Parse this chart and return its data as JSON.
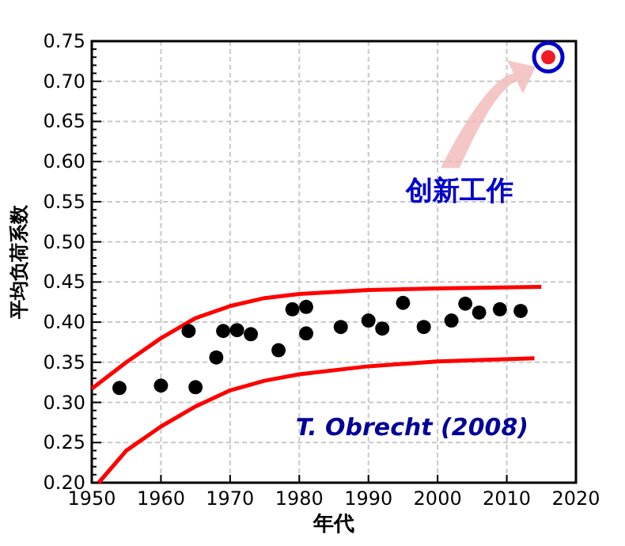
{
  "chart_data": {
    "type": "scatter",
    "xlabel": "年代",
    "ylabel": "平均负荷系数",
    "xlim": [
      1950,
      2020
    ],
    "ylim": [
      0.2,
      0.75
    ],
    "xticks": [
      1950,
      1960,
      1970,
      1980,
      1990,
      2000,
      2010,
      2020
    ],
    "yticks": [
      {
        "value": 0.2,
        "label": "0.20"
      },
      {
        "value": 0.25,
        "label": "0.25"
      },
      {
        "value": 0.3,
        "label": "0.30"
      },
      {
        "value": 0.35,
        "label": "0.35"
      },
      {
        "value": 0.4,
        "label": "0.40"
      },
      {
        "value": 0.45,
        "label": "0.45"
      },
      {
        "value": 0.5,
        "label": "0.50"
      },
      {
        "value": 0.55,
        "label": "0.55"
      },
      {
        "value": 0.6,
        "label": "0.60"
      },
      {
        "value": 0.65,
        "label": "0.65"
      },
      {
        "value": 0.7,
        "label": "0.70"
      },
      {
        "value": 0.75,
        "label": "0.75"
      }
    ],
    "grid": true,
    "series": [
      {
        "type": "line",
        "marker": "none",
        "color": "#ff0000",
        "x": [
          1950,
          1955,
          1960,
          1965,
          1970,
          1975,
          1980,
          1990,
          2000,
          2015
        ],
        "values": [
          0.317,
          0.35,
          0.38,
          0.405,
          0.42,
          0.43,
          0.435,
          0.44,
          0.442,
          0.444
        ]
      },
      {
        "type": "line",
        "marker": "none",
        "color": "#ff0000",
        "x": [
          1951,
          1955,
          1960,
          1965,
          1970,
          1975,
          1980,
          1990,
          2000,
          2014
        ],
        "values": [
          0.2,
          0.24,
          0.27,
          0.295,
          0.315,
          0.327,
          0.335,
          0.345,
          0.351,
          0.355
        ]
      },
      {
        "marker": "circle",
        "color": "#000000",
        "x": [
          1954,
          1960,
          1964,
          1965,
          1968,
          1969,
          1971,
          1973,
          1977,
          1979,
          1981,
          1981,
          1986,
          1990,
          1992,
          1995,
          1998,
          2002,
          2004,
          2006,
          2009,
          2012
        ],
        "values": [
          0.318,
          0.321,
          0.389,
          0.319,
          0.356,
          0.389,
          0.39,
          0.385,
          0.365,
          0.416,
          0.419,
          0.386,
          0.394,
          0.402,
          0.392,
          0.424,
          0.394,
          0.402,
          0.423,
          0.412,
          0.416,
          0.414
        ]
      },
      {
        "marker": "circle",
        "color": "#ee1c25",
        "x": [
          2016
        ],
        "values": [
          0.73
        ]
      }
    ],
    "annotations": [
      "创新工作",
      "T. Obrecht (2008)"
    ]
  }
}
